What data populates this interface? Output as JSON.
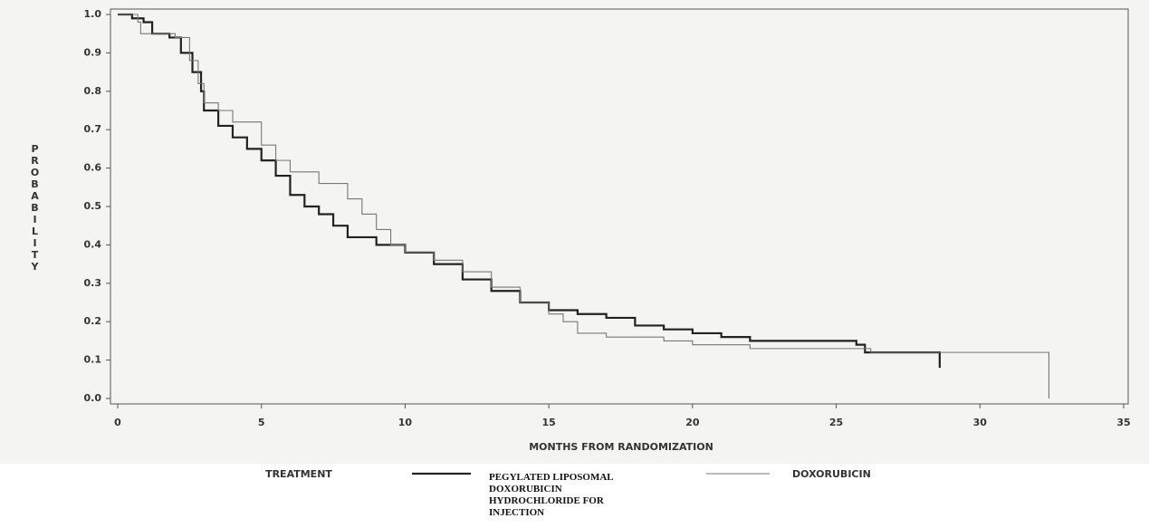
{
  "chart_data": {
    "type": "step",
    "y_label": "PROBABILITY",
    "x_label": "MONTHS FROM RANDOMIZATION",
    "legend_title": "TREATMENT",
    "xlim": [
      0,
      35
    ],
    "xticks": [
      0,
      5,
      10,
      15,
      20,
      25,
      30,
      35
    ],
    "ylim": [
      0,
      1
    ],
    "yticks": [
      {
        "value": 0,
        "label": "0.0"
      },
      0.1,
      0.2,
      0.3,
      0.4,
      0.5,
      0.6,
      0.7,
      0.8,
      0.9,
      {
        "value": 1,
        "label": "1.0"
      }
    ],
    "series": [
      {
        "name": "PEGYLATED LIPOSOMAL DOXORUBICIN HYDROCHLORIDE FOR INJECTION",
        "color": "#222222",
        "x": [
          0,
          0.5,
          0.9,
          1.2,
          1.8,
          2.2,
          2.6,
          2.9,
          3.0,
          3.5,
          4,
          4.5,
          5,
          5.5,
          6,
          6.5,
          7,
          7.5,
          8,
          9,
          10,
          11,
          12,
          13,
          14,
          15,
          16,
          17,
          18,
          19,
          20,
          21,
          22,
          25.7,
          26,
          28.6
        ],
        "values": [
          1.0,
          0.99,
          0.98,
          0.95,
          0.94,
          0.9,
          0.85,
          0.8,
          0.75,
          0.71,
          0.68,
          0.65,
          0.62,
          0.58,
          0.53,
          0.5,
          0.48,
          0.45,
          0.42,
          0.4,
          0.38,
          0.35,
          0.31,
          0.28,
          0.25,
          0.23,
          0.22,
          0.21,
          0.19,
          0.18,
          0.17,
          0.16,
          0.15,
          0.14,
          0.12,
          0.08
        ]
      },
      {
        "name": "DOXORUBICIN",
        "color": "#777777",
        "x": [
          0,
          0.7,
          0.8,
          2,
          2.5,
          2.8,
          3.0,
          3.5,
          4,
          5,
          5.5,
          6,
          7,
          8,
          8.5,
          9,
          9.5,
          10,
          11,
          12,
          13,
          14,
          15,
          15.5,
          16,
          17,
          19,
          20,
          22,
          26.2,
          32.4
        ],
        "values": [
          1.0,
          0.98,
          0.95,
          0.94,
          0.88,
          0.82,
          0.77,
          0.75,
          0.72,
          0.66,
          0.62,
          0.59,
          0.56,
          0.52,
          0.48,
          0.44,
          0.4,
          0.38,
          0.36,
          0.33,
          0.29,
          0.25,
          0.22,
          0.2,
          0.17,
          0.16,
          0.15,
          0.14,
          0.13,
          0.12,
          0.0
        ]
      }
    ]
  }
}
